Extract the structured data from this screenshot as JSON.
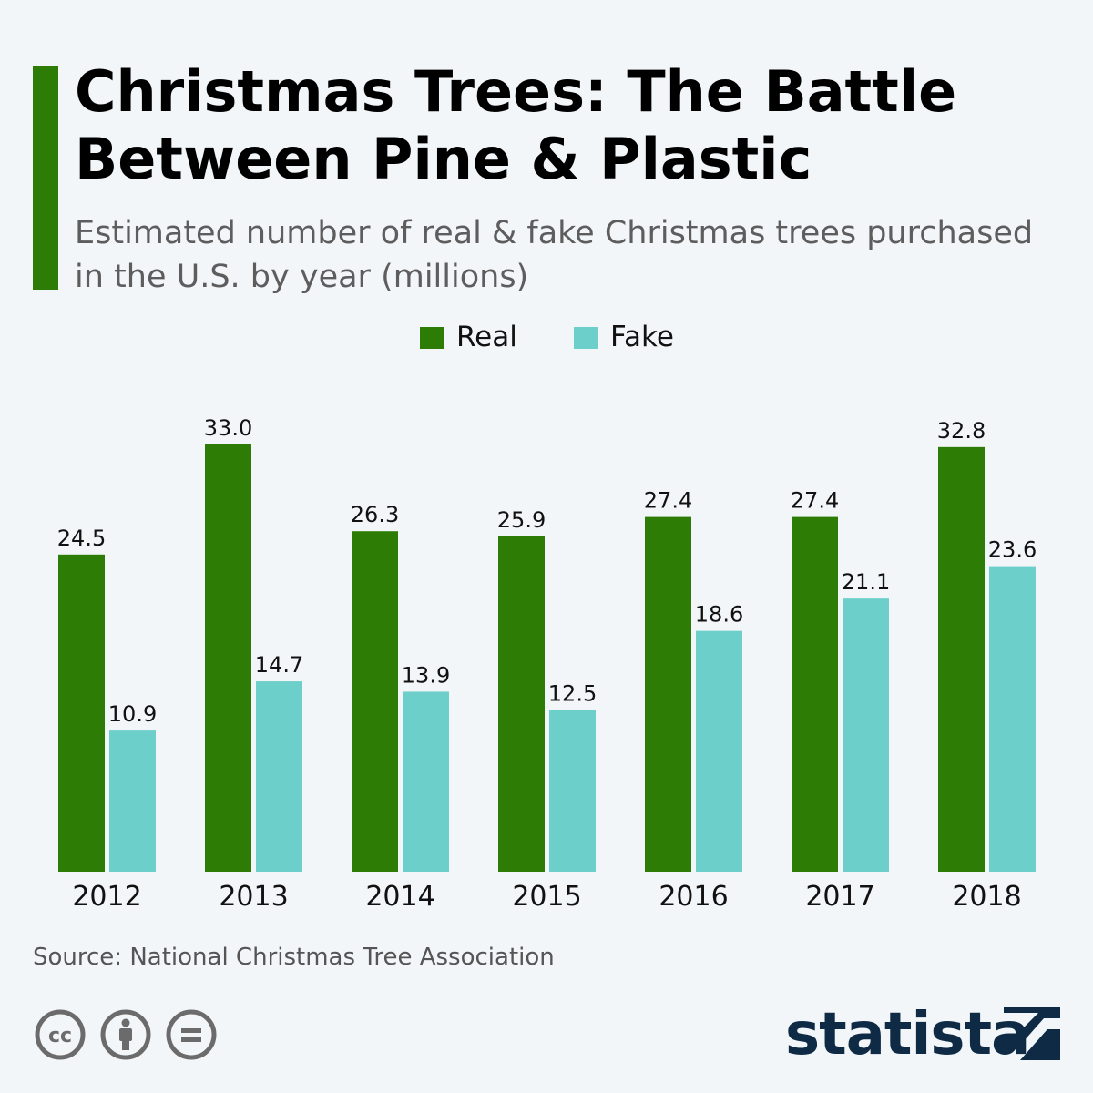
{
  "header": {
    "title": "Christmas Trees: The Battle Between Pine & Plastic",
    "subtitle": "Estimated number of real & fake Christmas trees purchased in the U.S. by year (millions)"
  },
  "legend": [
    {
      "label": "Real",
      "color": "#2d7c05"
    },
    {
      "label": "Fake",
      "color": "#6dcfc9"
    }
  ],
  "chart_data": {
    "type": "bar",
    "title": "Christmas Trees: The Battle Between Pine & Plastic",
    "subtitle": "Estimated number of real & fake Christmas trees purchased in the U.S. by year (millions)",
    "categories": [
      "2012",
      "2013",
      "2014",
      "2015",
      "2016",
      "2017",
      "2018"
    ],
    "series": [
      {
        "name": "Real",
        "color": "#2d7c05",
        "values": [
          24.5,
          33.0,
          26.3,
          25.9,
          27.4,
          27.4,
          32.8
        ],
        "labels": [
          "24.5",
          "33.0",
          "26.3",
          "25.9",
          "27.4",
          "27.4",
          "32.8"
        ]
      },
      {
        "name": "Fake",
        "color": "#6dcfc9",
        "values": [
          10.9,
          14.7,
          13.9,
          12.5,
          18.6,
          21.1,
          23.6
        ],
        "labels": [
          "10.9",
          "14.7",
          "13.9",
          "12.5",
          "18.6",
          "21.1",
          "23.6"
        ]
      }
    ],
    "ylim": [
      0,
      33.0
    ],
    "grid": false,
    "legend_position": "top-center"
  },
  "footer": {
    "source": "Source: National Christmas Tree Association",
    "brand": "statista",
    "icons": [
      "creative-commons-icon",
      "attribution-icon",
      "no-derivatives-icon"
    ]
  }
}
